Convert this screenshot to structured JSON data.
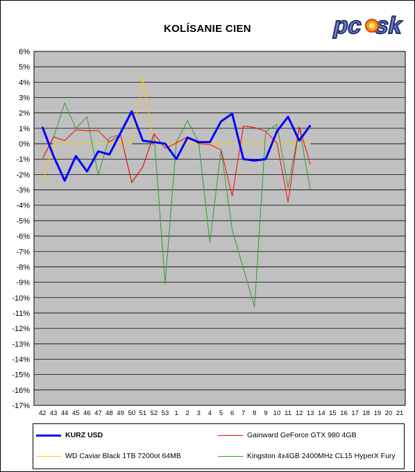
{
  "chart_data": {
    "type": "line",
    "title": "KOLÍSANIE CIEN",
    "xlabel": "",
    "ylabel": "",
    "ylim": [
      -17,
      6
    ],
    "yticks": [
      "6%",
      "5%",
      "4%",
      "3%",
      "2%",
      "1%",
      "0%",
      "-1%",
      "-2%",
      "-3%",
      "-4%",
      "-5%",
      "-6%",
      "-7%",
      "-8%",
      "-9%",
      "-10%",
      "-11%",
      "-12%",
      "-13%",
      "-14%",
      "-15%",
      "-16%",
      "-17%"
    ],
    "grid": true,
    "legend_position": "bottom",
    "background": "#c0c0c0",
    "categories": [
      "42",
      "43",
      "44",
      "45",
      "46",
      "47",
      "48",
      "49",
      "50",
      "51",
      "52",
      "53",
      "1",
      "2",
      "3",
      "4",
      "5",
      "6",
      "7",
      "8",
      "9",
      "10",
      "11",
      "12",
      "13",
      "14",
      "15",
      "16",
      "17",
      "18",
      "19",
      "20",
      "21"
    ],
    "series": [
      {
        "name": "KURZ USD",
        "color": "#0000ff",
        "width": 3,
        "values": [
          1.1,
          -0.8,
          -2.4,
          -0.8,
          -1.8,
          -0.5,
          -0.7,
          0.7,
          2.1,
          0.2,
          0.1,
          0.0,
          -1.0,
          0.4,
          0.1,
          0.1,
          1.45,
          1.95,
          -1.0,
          -1.1,
          -1.0,
          0.8,
          1.75,
          0.2,
          1.2,
          null,
          null,
          null,
          null,
          null,
          null,
          null,
          null
        ]
      },
      {
        "name": "Gainward GeForce GTX 980 4GB",
        "color": "#ff0000",
        "width": 1,
        "values": [
          -1.0,
          0.45,
          0.2,
          0.9,
          0.85,
          0.85,
          0.1,
          0.6,
          -2.5,
          -1.5,
          0.65,
          -0.3,
          0.05,
          0.45,
          0.0,
          -0.05,
          -0.4,
          -3.4,
          1.15,
          1.05,
          0.8,
          0.05,
          -3.8,
          1.1,
          -1.35,
          null,
          null,
          null,
          null,
          null,
          null,
          null,
          null
        ]
      },
      {
        "name": "WD Caviar Black 1TB 7200ot 64MB",
        "color": "#ffcc00",
        "width": 1,
        "values": [
          -2.6,
          0.0,
          0.0,
          0.0,
          0.0,
          0.0,
          0.0,
          0.0,
          0.0,
          4.3,
          0.0,
          0.0,
          0.0,
          0.0,
          0.0,
          0.0,
          0.0,
          0.0,
          0.0,
          0.0,
          0.0,
          0.0,
          0.0,
          0.0,
          0.0,
          null,
          null,
          null,
          null,
          null,
          null,
          null,
          null
        ]
      },
      {
        "name": "Kingston 4x4GB 2400MHz CL15 HyperX Fury",
        "color": "#339933",
        "width": 1,
        "values": [
          -1.0,
          0.4,
          2.65,
          1.0,
          1.75,
          -2.05,
          0.4,
          0.6,
          -2.55,
          -1.5,
          0.6,
          -9.1,
          0.1,
          1.5,
          0.1,
          -6.4,
          -0.4,
          -5.6,
          -8.1,
          -10.6,
          0.8,
          1.25,
          -2.85,
          1.05,
          -3.0,
          null,
          null,
          null,
          null,
          null,
          null,
          null,
          null
        ]
      }
    ]
  },
  "logo": {
    "text": "pcosk"
  }
}
